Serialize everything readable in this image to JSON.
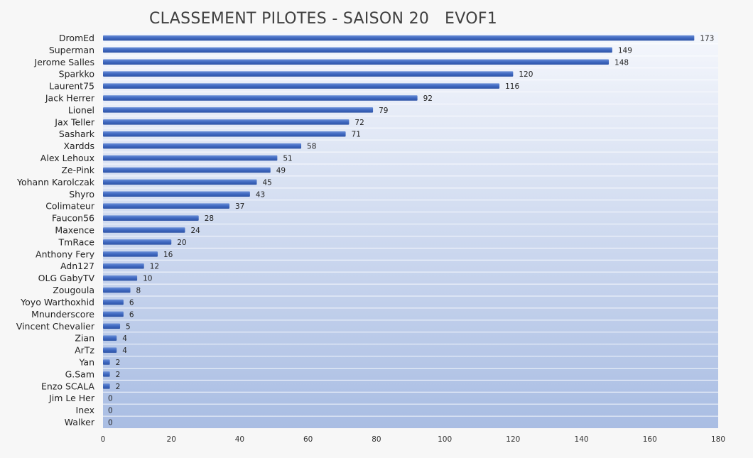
{
  "chart_data": {
    "type": "bar",
    "orientation": "horizontal",
    "title": "CLASSEMENT PILOTES - SAISON 20   EVOF1",
    "categories": [
      "DromEd",
      "Superman",
      "Jerome Salles",
      "Sparkko",
      "Laurent75",
      "Jack Herrer",
      "Lionel",
      "Jax Teller",
      "Sashark",
      "Xardds",
      "Alex Lehoux",
      "Ze-Pink",
      "Yohann Karolczak",
      "Shyro",
      "Colimateur",
      "Faucon56",
      "Maxence",
      "TmRace",
      "Anthony Fery",
      "Adn127",
      "OLG GabyTV",
      "Zougoula",
      "Yoyo Warthoxhid",
      "Mnunderscore",
      "Vincent Chevalier",
      "Zian",
      "ArTz",
      "Yan",
      "G.Sam",
      "Enzo SCALA",
      "Jim Le Her",
      "Inex",
      "Walker"
    ],
    "values": [
      173,
      149,
      148,
      120,
      116,
      92,
      79,
      72,
      71,
      58,
      51,
      49,
      45,
      43,
      37,
      28,
      24,
      20,
      16,
      12,
      10,
      8,
      6,
      6,
      5,
      4,
      4,
      2,
      2,
      2,
      0,
      0,
      0
    ],
    "xlim": [
      0,
      180
    ],
    "xticks": [
      0,
      20,
      40,
      60,
      80,
      100,
      120,
      140,
      160,
      180
    ],
    "xlabel": "",
    "ylabel": "",
    "grid": "horizontal bands",
    "legend": "none",
    "colors": {
      "bar": "#3f68c0",
      "bar_light": "#6a8fd8",
      "plot_bg_top": "#f5f7fc",
      "plot_bg_bottom": "#a9bde3",
      "separator": "#ffffff"
    }
  }
}
